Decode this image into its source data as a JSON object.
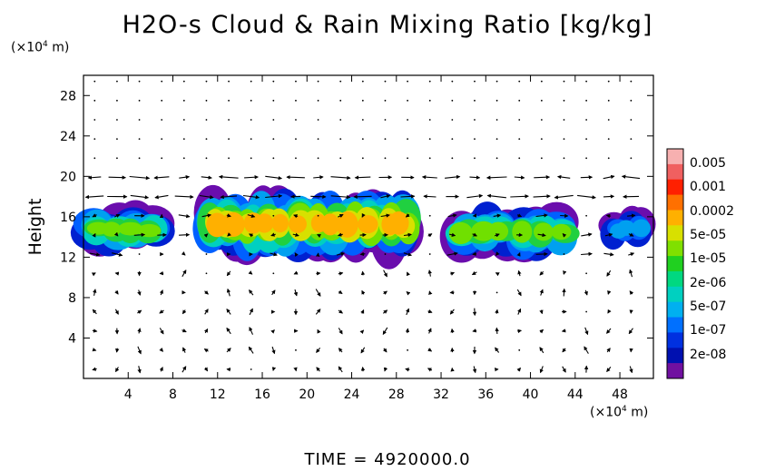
{
  "chart_data": {
    "type": "heatmap",
    "title": "H2O-s Cloud & Rain Mixing Ratio [kg/kg]",
    "ylabel": "Height",
    "xlabel": "",
    "x_unit_label": "(×10⁴ m)",
    "y_unit_label": "(×10⁴ m)",
    "xlim": [
      0,
      51
    ],
    "ylim": [
      0,
      30
    ],
    "x_ticks": [
      "4",
      "8",
      "12",
      "16",
      "20",
      "24",
      "28",
      "32",
      "36",
      "40",
      "44",
      "48"
    ],
    "x_tick_values": [
      4,
      8,
      12,
      16,
      20,
      24,
      28,
      32,
      36,
      40,
      44,
      48
    ],
    "y_ticks": [
      "4",
      "8",
      "12",
      "16",
      "20",
      "24",
      "28"
    ],
    "y_tick_values": [
      4,
      8,
      12,
      16,
      20,
      24,
      28
    ],
    "colorbar": {
      "labels": [
        "0.005",
        "0.001",
        "0.0002",
        "5e-05",
        "1e-05",
        "2e-06",
        "5e-07",
        "1e-07",
        "2e-08"
      ],
      "colors": [
        "#f7b0b0",
        "#f06060",
        "#ff2000",
        "#ff7000",
        "#ffb000",
        "#d8e000",
        "#80e000",
        "#20d020",
        "#00d880",
        "#00d0c0",
        "#00b0f0",
        "#0070ff",
        "#0030e0",
        "#0010b0",
        "#7010a0"
      ]
    },
    "cloud_regions": [
      {
        "x_range": [
          0,
          8
        ],
        "y_range": [
          12.5,
          17
        ],
        "peak": "1e-05"
      },
      {
        "x_range": [
          10,
          31
        ],
        "y_range": [
          12,
          18.5
        ],
        "peak": "0.0002"
      },
      {
        "x_range": [
          33,
          44.5
        ],
        "y_range": [
          12,
          17
        ],
        "peak": "1e-05"
      },
      {
        "x_range": [
          47,
          51
        ],
        "y_range": [
          13,
          16.5
        ],
        "peak": "5e-07"
      }
    ],
    "wind_vectors": "shown as arrow field over the full domain",
    "grid": false
  },
  "footer": {
    "time_label": "TIME  =  4920000.0"
  }
}
